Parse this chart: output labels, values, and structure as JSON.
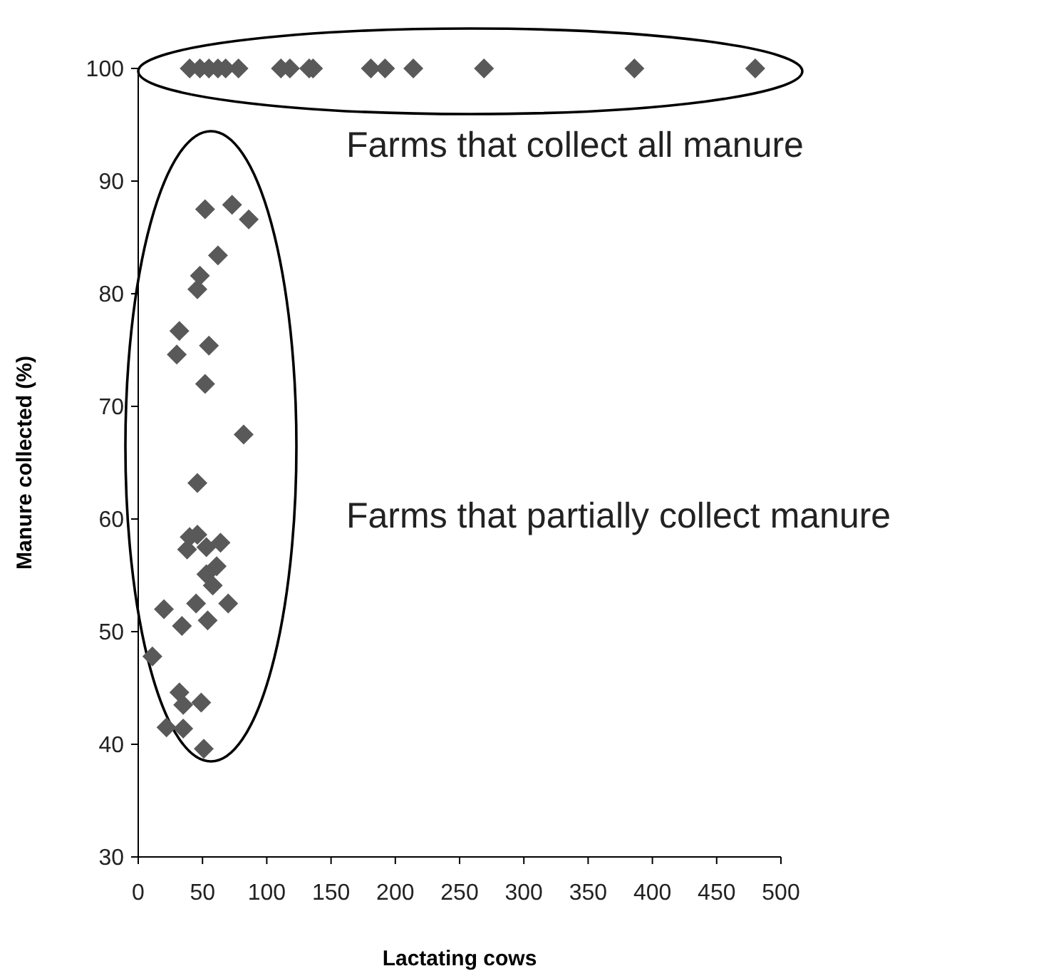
{
  "chart_data": {
    "type": "scatter",
    "xlabel": "Lactating cows",
    "ylabel": "Manure collected (%)",
    "xlim": [
      0,
      500
    ],
    "ylim": [
      30,
      100
    ],
    "xticks": [
      0,
      50,
      100,
      150,
      200,
      250,
      300,
      350,
      400,
      450,
      500
    ],
    "yticks": [
      30,
      40,
      50,
      60,
      70,
      80,
      90,
      100
    ],
    "marker": "diamond",
    "annotations": [
      "Farms that collect all manure",
      "Farms that partially collect manure"
    ],
    "series": [
      {
        "color": "#595959",
        "x": [
          40,
          48,
          55,
          62,
          68,
          78,
          111,
          118,
          133,
          136,
          181,
          192,
          214,
          269,
          386,
          480
        ],
        "values": [
          100,
          100,
          100,
          100,
          100,
          100,
          100,
          100,
          100,
          100,
          100,
          100,
          100,
          100,
          100,
          100
        ]
      },
      {
        "color": "#595959",
        "x": [
          52,
          73,
          86,
          62,
          48,
          46,
          32,
          30,
          55,
          52,
          82,
          46,
          40,
          46,
          38,
          53,
          64,
          61,
          53,
          58,
          70,
          45,
          20,
          54,
          34,
          11,
          32,
          35,
          49,
          22,
          35,
          51
        ],
        "values": [
          87.5,
          87.9,
          86.6,
          83.4,
          81.6,
          80.4,
          76.7,
          74.6,
          75.4,
          72.0,
          67.5,
          63.2,
          58.4,
          58.6,
          57.3,
          57.5,
          57.9,
          55.8,
          55.1,
          54.1,
          52.5,
          52.5,
          52.0,
          51.0,
          50.5,
          47.8,
          44.6,
          43.5,
          43.7,
          41.5,
          41.4,
          39.6
        ]
      }
    ]
  }
}
